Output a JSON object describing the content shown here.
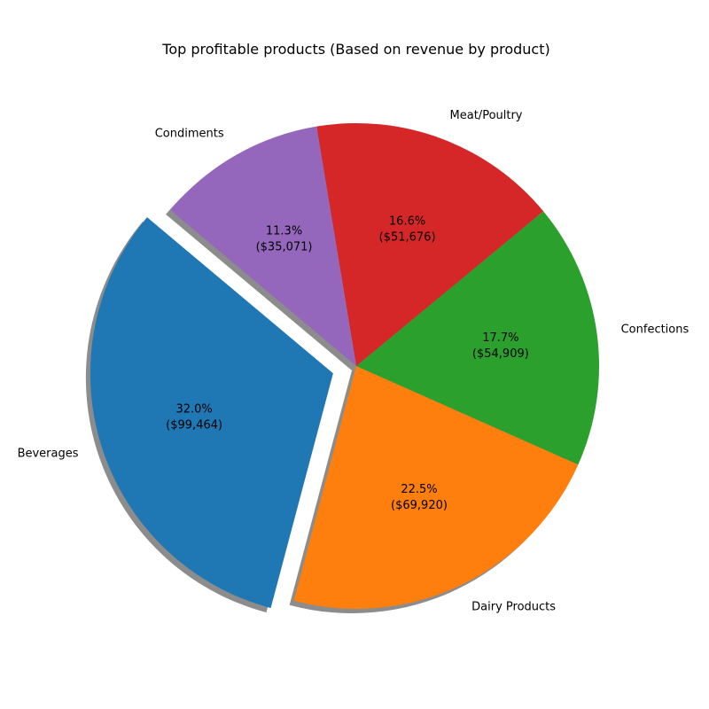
{
  "chart_data": {
    "type": "pie",
    "title": "Top profitable products (Based on revenue by product)",
    "categories": [
      "Beverages",
      "Dairy Products",
      "Confections",
      "Meat/Poultry",
      "Condiments"
    ],
    "values": [
      99464,
      69920,
      54909,
      51676,
      35071
    ],
    "percent_labels": [
      "32.0%",
      "22.5%",
      "17.7%",
      "16.6%",
      "11.3%"
    ],
    "value_labels": [
      "($99,464)",
      "($69,920)",
      "($54,909)",
      "($51,676)",
      "($35,071)"
    ],
    "colors": [
      "#1f77b4",
      "#ff7f0e",
      "#2ca02c",
      "#d62728",
      "#9467bd"
    ],
    "explode": [
      0.1,
      0,
      0,
      0,
      0
    ],
    "start_angle": 140,
    "counterclock": true,
    "shadow": true
  }
}
